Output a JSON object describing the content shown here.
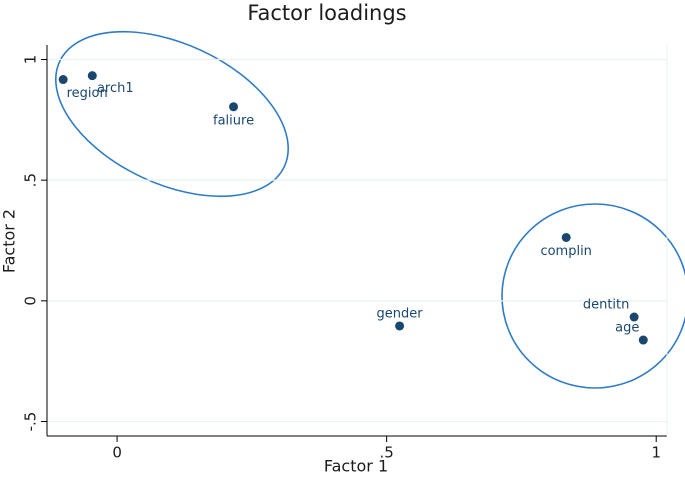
{
  "chart_data": {
    "type": "scatter",
    "title": "Factor loadings",
    "x_label": "Factor 1",
    "y_label": "Factor 2",
    "labels": [
      "region",
      "arch1",
      "faliure",
      "complin",
      "dentitn",
      "age",
      "gender"
    ],
    "x": [
      -0.1,
      -0.046,
      0.216,
      0.833,
      0.959,
      0.976,
      0.524
    ],
    "values": [
      0.917,
      0.933,
      0.804,
      0.2625,
      -0.067,
      -0.1625,
      -0.104
    ],
    "color": "#1a476f",
    "xlim": [
      -0.13,
      1.02
    ],
    "ylim": [
      -0.56,
      1.06
    ],
    "xticks": [
      0,
      {
        "value": 0.5,
        "label": ".5"
      },
      1
    ],
    "yticks": [
      {
        "value": -0.5,
        "label": "-.5"
      },
      0,
      {
        "value": 0.5,
        "label": ".5"
      },
      1
    ],
    "grid": true
  }
}
